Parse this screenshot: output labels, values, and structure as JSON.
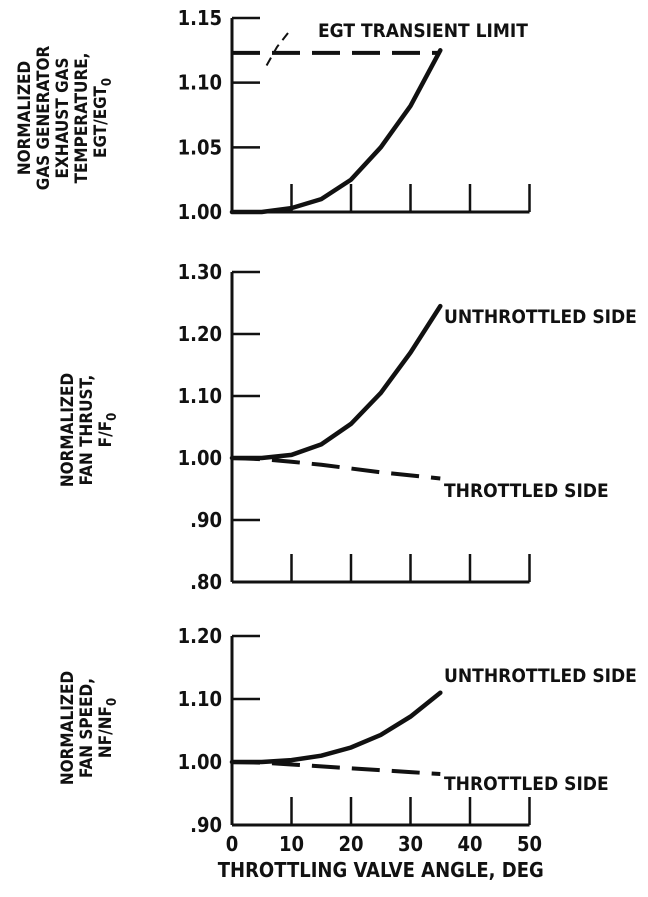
{
  "chart_data": [
    {
      "type": "line",
      "ylabel_lines": [
        "NORMALIZED",
        "GAS GENERATOR",
        "EXHAUST GAS",
        "TEMPERATURE,",
        "EGT/EGT₀"
      ],
      "ylim": [
        1.0,
        1.15
      ],
      "yticks": [
        "1.00",
        "1.05",
        "1.10",
        "1.15"
      ],
      "xlim": [
        0,
        50
      ],
      "series": [
        {
          "name": "",
          "style": "solid",
          "x": [
            0,
            5,
            10,
            15,
            20,
            25,
            30,
            35
          ],
          "y": [
            1.0,
            1.0,
            1.003,
            1.01,
            1.025,
            1.05,
            1.082,
            1.125
          ]
        },
        {
          "name": "EGT TRANSIENT LIMIT",
          "style": "dashed",
          "x": [
            0,
            35
          ],
          "y": [
            1.123,
            1.123
          ]
        }
      ]
    },
    {
      "type": "line",
      "ylabel_lines": [
        "NORMALIZED",
        "FAN THRUST,",
        "F/F₀"
      ],
      "ylim": [
        0.8,
        1.3
      ],
      "yticks": [
        "1.30",
        "1.20",
        "1.10",
        "1.00",
        ".90",
        ".80"
      ],
      "xlim": [
        0,
        50
      ],
      "series": [
        {
          "name": "UNTHROTTLED SIDE",
          "style": "solid",
          "x": [
            0,
            5,
            10,
            15,
            20,
            25,
            30,
            35
          ],
          "y": [
            1.0,
            1.0,
            1.005,
            1.022,
            1.055,
            1.105,
            1.17,
            1.245
          ]
        },
        {
          "name": "THROTTLED SIDE",
          "style": "dashed",
          "x": [
            0,
            5,
            10,
            15,
            20,
            25,
            30,
            35
          ],
          "y": [
            1.0,
            0.998,
            0.994,
            0.989,
            0.983,
            0.977,
            0.972,
            0.967
          ]
        }
      ]
    },
    {
      "type": "line",
      "ylabel_lines": [
        "NORMALIZED",
        "FAN SPEED,",
        "NF/NF₀"
      ],
      "ylim": [
        0.9,
        1.2
      ],
      "yticks": [
        "1.20",
        "1.10",
        "1.00",
        ".90"
      ],
      "xlim": [
        0,
        50
      ],
      "xticks": [
        "0",
        "10",
        "20",
        "30",
        "40",
        "50"
      ],
      "xlabel": "THROTTLING VALVE ANGLE, DEG",
      "series": [
        {
          "name": "UNTHROTTLED SIDE",
          "style": "solid",
          "x": [
            0,
            5,
            10,
            15,
            20,
            25,
            30,
            35
          ],
          "y": [
            1.0,
            1.0,
            1.003,
            1.01,
            1.023,
            1.043,
            1.072,
            1.11
          ]
        },
        {
          "name": "THROTTLED SIDE",
          "style": "dashed",
          "x": [
            0,
            5,
            10,
            15,
            20,
            25,
            30,
            35
          ],
          "y": [
            1.0,
            0.999,
            0.996,
            0.993,
            0.99,
            0.987,
            0.984,
            0.981
          ]
        }
      ]
    }
  ]
}
